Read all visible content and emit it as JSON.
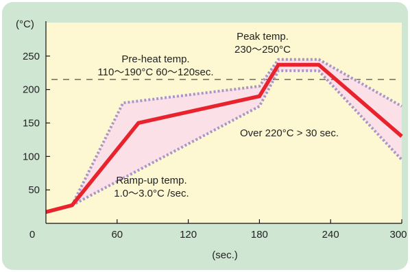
{
  "chart_data": {
    "type": "line",
    "xlabel": "(sec.)",
    "ylabel": "(°C)",
    "xlim": [
      0,
      300
    ],
    "ylim": [
      0,
      300
    ],
    "x_ticks": [
      0,
      60,
      120,
      180,
      240,
      300
    ],
    "y_ticks": [
      50,
      100,
      150,
      200,
      250
    ],
    "x_tick_labels": [
      "0",
      "60",
      "120",
      "180",
      "240",
      "300"
    ],
    "y_tick_labels": [
      "50",
      "100",
      "150",
      "200",
      "250"
    ],
    "reference_line": {
      "y": 215
    },
    "series": [
      {
        "role": "profile",
        "color": "#e8232d",
        "points": [
          [
            0,
            17
          ],
          [
            22,
            27
          ],
          [
            78,
            150
          ],
          [
            180,
            190
          ],
          [
            196,
            237
          ],
          [
            230,
            237
          ],
          [
            300,
            130
          ]
        ]
      },
      {
        "role": "upper-bound",
        "color": "#a896c8",
        "points": [
          [
            22,
            27
          ],
          [
            65,
            180
          ],
          [
            180,
            205
          ],
          [
            196,
            245
          ],
          [
            230,
            245
          ],
          [
            300,
            175
          ]
        ]
      },
      {
        "role": "lower-bound",
        "color": "#a896c8",
        "points": [
          [
            22,
            27
          ],
          [
            180,
            175
          ],
          [
            196,
            228
          ],
          [
            230,
            228
          ],
          [
            300,
            95
          ]
        ]
      }
    ],
    "annotations": [
      {
        "id": "preheat",
        "lines": [
          "Pre-heat temp.",
          "110〜190°C  60〜120sec."
        ]
      },
      {
        "id": "peak",
        "lines": [
          "Peak temp.",
          "230〜250°C"
        ]
      },
      {
        "id": "over",
        "lines": [
          "Over 220°C > 30 sec."
        ]
      },
      {
        "id": "rampup",
        "lines": [
          "Ramp-up temp.",
          "1.0〜3.0°C /sec."
        ]
      }
    ],
    "colors": {
      "plot_bg": "#fdf8d2",
      "outer_bg": "#cfe7d2",
      "band_fill": "#fbe0e8",
      "axis": "#111111"
    }
  }
}
